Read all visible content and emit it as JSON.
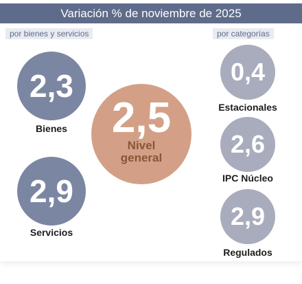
{
  "header": {
    "title": "Variación % de noviembre de 2025"
  },
  "left": {
    "label": "por bienes y servicios",
    "items": [
      {
        "value": "2,3",
        "label": "Bienes"
      },
      {
        "value": "2,9",
        "label": "Servicios"
      }
    ]
  },
  "center": {
    "value": "2,5",
    "label_line1": "Nivel",
    "label_line2": "general"
  },
  "right": {
    "label": "por categorías",
    "items": [
      {
        "value": "0,4",
        "label": "Estacionales"
      },
      {
        "value": "2,6",
        "label": "IPC Núcleo"
      },
      {
        "value": "2,9",
        "label": "Regulados"
      }
    ]
  }
}
